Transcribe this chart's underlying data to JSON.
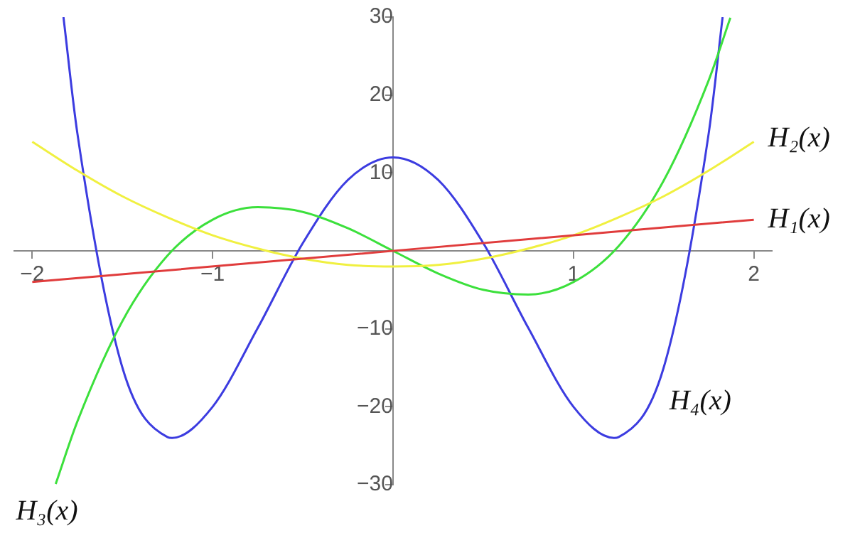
{
  "chart_data": {
    "type": "line",
    "xlim": [
      -2.1,
      2.1
    ],
    "ylim": [
      -30,
      30
    ],
    "xticks": [
      -2,
      -1,
      1,
      2
    ],
    "yticks": [
      -30,
      -20,
      -10,
      10,
      20,
      30
    ],
    "grid": false,
    "legend": false,
    "marker": "none",
    "series": [
      {
        "name": "H₁(x)",
        "color": "#e03c3c",
        "x": [
          -2,
          2
        ],
        "values": [
          -4,
          4
        ]
      },
      {
        "name": "H₂(x)",
        "color": "#f0f040",
        "x": [
          -2,
          -1.75,
          -1.5,
          -1.25,
          -1,
          -0.75,
          -0.5,
          -0.25,
          0,
          0.25,
          0.5,
          0.75,
          1,
          1.25,
          1.5,
          1.75,
          2
        ],
        "values": [
          14,
          10.3,
          7,
          4.3,
          2,
          0.3,
          -1,
          -1.8,
          -2,
          -1.8,
          -1,
          0.3,
          2,
          4.3,
          7,
          10.3,
          14
        ]
      },
      {
        "name": "H₃(x)",
        "color": "#3ce03c",
        "x": [
          -1.87,
          -1.75,
          -1.5,
          -1.25,
          -1,
          -0.75,
          -0.5,
          -0.25,
          0,
          0.25,
          0.5,
          0.75,
          1,
          1.25,
          1.5,
          1.75,
          1.87
        ],
        "values": [
          -29.9,
          -21.9,
          -9,
          -0.6,
          4,
          5.6,
          5,
          2.9,
          0,
          -2.9,
          -5,
          -5.6,
          -4,
          0.6,
          9,
          21.9,
          29.9
        ]
      },
      {
        "name": "H₄(x)",
        "color": "#3c3ce0",
        "x": [
          -1.827,
          -1.75,
          -1.5,
          -1.25,
          -1.225,
          -1,
          -0.75,
          -0.5,
          -0.25,
          0,
          0.25,
          0.5,
          0.75,
          1,
          1.225,
          1.25,
          1.5,
          1.75,
          1.827
        ],
        "values": [
          30,
          15.1,
          -15,
          -23.9,
          -24,
          -20,
          -9.9,
          1,
          9.1,
          12,
          9.1,
          1,
          -9.9,
          -20,
          -24,
          -23.9,
          -15,
          15.1,
          30
        ]
      }
    ]
  }
}
